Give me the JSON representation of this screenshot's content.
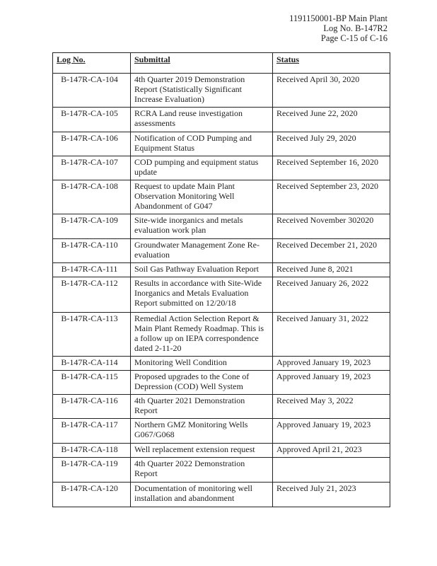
{
  "header": {
    "line1": "1191150001-BP Main Plant",
    "line2": "Log No. B-147R2",
    "line3": "Page C-15 of C-16"
  },
  "table": {
    "columns": [
      "Log No.",
      "Submittal",
      "Status"
    ],
    "rows": [
      {
        "log": "B-147R-CA-104",
        "submittal": "4th Quarter 2019 Demonstration Report (Statistically Significant Increase Evaluation)",
        "status": "Received April 30, 2020",
        "h": 48
      },
      {
        "log": "B-147R-CA-105",
        "submittal": "RCRA Land reuse investigation assessments",
        "status": "Received June 22, 2020",
        "h": 35
      },
      {
        "log": "B-147R-CA-106",
        "submittal": "Notification of COD Pumping and Equipment Status",
        "status": "Received July 29, 2020",
        "h": 34
      },
      {
        "log": "B-147R-CA-107",
        "submittal": "COD pumping and equipment status update",
        "status": "Received September 16, 2020",
        "h": 34
      },
      {
        "log": "B-147R-CA-108",
        "submittal": "Request to update Main Plant Observation Monitoring Well Abandonment of G047",
        "status": "Received September 23, 2020",
        "h": 48
      },
      {
        "log": "B-147R-CA-109",
        "submittal": "Site-wide inorganics and metals evaluation work plan",
        "status": "Received November 302020",
        "h": 35
      },
      {
        "log": "B-147R-CA-110",
        "submittal": "Groundwater Management Zone Re-evaluation",
        "status": "Received December 21, 2020",
        "h": 34
      },
      {
        "log": "B-147R-CA-111",
        "submittal": "Soil Gas Pathway Evaluation Report",
        "status": "Received June 8, 2021",
        "h": 20
      },
      {
        "log": "B-147R-CA-112",
        "submittal": "Results in accordance with Site-Wide Inorganics and Metals Evaluation Report submitted on 12/20/18",
        "status": "Received January 26, 2022",
        "h": 50
      },
      {
        "log": "B-147R-CA-113",
        "submittal": "Remedial Action Selection Report & Main Plant Remedy Roadmap.  This is a follow up on IEPA correspondence dated 2-11-20",
        "status": "Received January 31, 2022",
        "h": 62
      },
      {
        "log": "B-147R-CA-114",
        "submittal": " Monitoring Well Condition",
        "status": "Approved January 19, 2023",
        "h": 20
      },
      {
        "log": "B-147R-CA-115",
        "submittal": " Proposed upgrades to the Cone of Depression (COD) Well System",
        "status": "Approved January 19, 2023",
        "h": 34
      },
      {
        "log": "B-147R-CA-116",
        "submittal": "4th Quarter 2021 Demonstration Report",
        "status": "Received May 3, 2022",
        "h": 34
      },
      {
        "log": "B-147R-CA-117",
        "submittal": "Northern GMZ Monitoring Wells G067/G068",
        "status": "Approved January 19, 2023",
        "h": 35
      },
      {
        "log": "B-147R-CA-118",
        "submittal": "Well replacement extension request",
        "status": "Approved April 21, 2023",
        "h": 20
      },
      {
        "log": "B-147R-CA-119",
        "submittal": "4th Quarter 2022 Demonstration Report",
        "status": "",
        "h": 35
      },
      {
        "log": "B-147R-CA-120",
        "submittal": "Documentation of monitoring well installation and abandonment",
        "status": "Received July 21, 2023",
        "h": 35
      }
    ]
  }
}
